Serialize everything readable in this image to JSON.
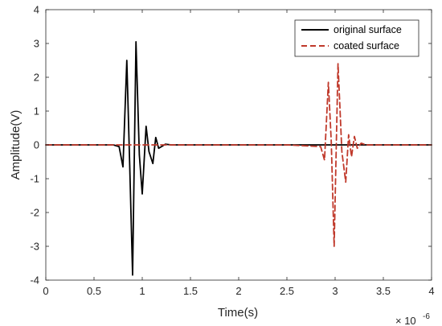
{
  "chart_data": {
    "type": "line",
    "title": "",
    "xlabel": "Time(s)",
    "ylabel": "Amplitude(V)",
    "x_exponent_label": "× 10",
    "x_exponent_power": "-6",
    "xlim": [
      0,
      4
    ],
    "ylim": [
      -4,
      4
    ],
    "x_ticks": [
      0,
      0.5,
      1,
      1.5,
      2,
      2.5,
      3,
      3.5,
      4
    ],
    "x_tick_labels": [
      "0",
      "0.5",
      "1",
      "1.5",
      "2",
      "2.5",
      "3",
      "3.5",
      "4"
    ],
    "y_ticks": [
      -4,
      -3,
      -2,
      -1,
      0,
      1,
      2,
      3,
      4
    ],
    "y_tick_labels": [
      "-4",
      "-3",
      "-2",
      "-1",
      "0",
      "1",
      "2",
      "3",
      "4"
    ],
    "grid": false,
    "legend_position": "top-right",
    "series": [
      {
        "name": "original surface",
        "color": "#000000",
        "style": "solid",
        "x": [
          0,
          0.7,
          0.76,
          0.8,
          0.84,
          0.87,
          0.9,
          0.935,
          0.97,
          1.0,
          1.04,
          1.07,
          1.11,
          1.14,
          1.17,
          1.2,
          1.24,
          1.3,
          1.5,
          2.0,
          2.5,
          3.0,
          3.5,
          4.0
        ],
        "y": [
          0,
          0,
          -0.05,
          -0.65,
          2.5,
          -0.6,
          -3.85,
          3.05,
          -0.3,
          -1.45,
          0.55,
          -0.2,
          -0.55,
          0.22,
          -0.1,
          -0.05,
          0.02,
          0,
          0,
          0,
          0,
          0,
          0,
          0
        ]
      },
      {
        "name": "coated surface",
        "color": "#c0392b",
        "style": "dashed",
        "x": [
          0,
          2.5,
          2.85,
          2.89,
          2.93,
          2.96,
          2.99,
          3.03,
          3.07,
          3.11,
          3.14,
          3.17,
          3.2,
          3.23,
          3.27,
          3.32,
          3.5,
          4.0
        ],
        "y": [
          0,
          0,
          -0.05,
          -0.45,
          1.85,
          0.1,
          -3.0,
          2.4,
          -0.2,
          -1.1,
          0.3,
          -0.35,
          0.25,
          -0.1,
          0.05,
          0,
          0,
          0
        ]
      }
    ]
  }
}
